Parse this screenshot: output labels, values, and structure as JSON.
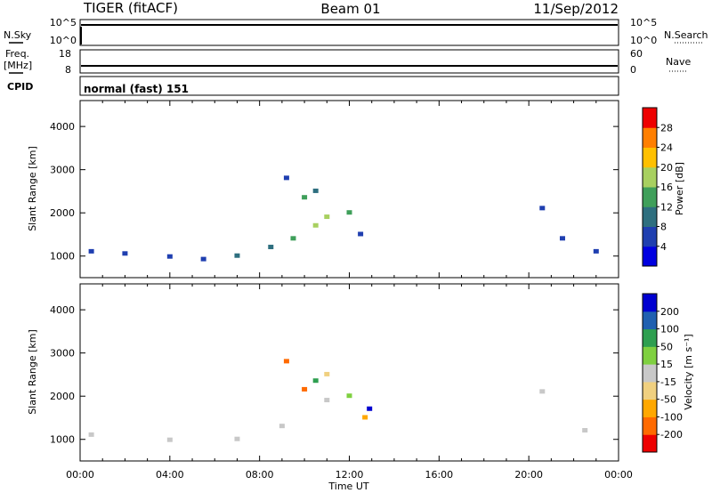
{
  "header": {
    "site": "TIGER (fitACF)",
    "beam": "Beam 01",
    "date": "11/Sep/2012"
  },
  "strips": {
    "nsky": {
      "label": "N.Sky",
      "ticks": [
        "10^5",
        "10^0"
      ]
    },
    "nsearch": {
      "label": "N.Search",
      "ticks": [
        "10^5",
        "10^0"
      ]
    },
    "freq": {
      "label_line1": "Freq.",
      "label_line2": "[MHz]",
      "ticks": [
        "18",
        "8"
      ]
    },
    "nave": {
      "label": "Nave",
      "ticks": [
        "60",
        "0"
      ]
    },
    "cpid": {
      "label": "CPID",
      "value": "normal (fast) 151"
    }
  },
  "colorbars": {
    "power": {
      "label": "Power [dB]",
      "ticks": [
        "28",
        "24",
        "20",
        "16",
        "12",
        "8",
        "4"
      ],
      "colors": [
        "#0000e0",
        "#1f3fb0",
        "#2e6f7f",
        "#3f9f5a",
        "#a8d060",
        "#ffc000",
        "#ff7f00",
        "#ee0000"
      ]
    },
    "velocity": {
      "label": "Velocity [m s⁻¹]",
      "ticks": [
        "200",
        "100",
        "50",
        "15",
        "-15",
        "-50",
        "-100",
        "-200"
      ],
      "colors": [
        "#ee0000",
        "#ff6a00",
        "#ffa800",
        "#f0d080",
        "#c8c8c8",
        "#7fd040",
        "#2e9f50",
        "#2060b0",
        "#0000d0"
      ]
    }
  },
  "chart_data": [
    {
      "type": "scatter",
      "title": "",
      "xlabel": "Time UT",
      "ylabel": "Slant Range [km]",
      "xlim": [
        "00:00",
        "24:00"
      ],
      "ylim": [
        500,
        4600
      ],
      "xticks": [
        "00:00",
        "04:00",
        "08:00",
        "12:00",
        "16:00",
        "20:00",
        "00:00"
      ],
      "yticks": [
        1000,
        2000,
        3000,
        4000
      ],
      "color_quantity": "Power [dB]",
      "series": [
        {
          "values": [
            [
              0.5,
              1100,
              4
            ],
            [
              2.0,
              1050,
              4
            ],
            [
              4.0,
              980,
              5
            ],
            [
              5.5,
              920,
              7
            ],
            [
              7.0,
              1000,
              8
            ],
            [
              8.5,
              1200,
              11
            ],
            [
              9.5,
              1400,
              14
            ],
            [
              10.5,
              1700,
              16
            ],
            [
              11.0,
              1900,
              17
            ],
            [
              12.0,
              2000,
              15
            ],
            [
              12.5,
              1500,
              6
            ],
            [
              10.0,
              2350,
              12
            ],
            [
              10.5,
              2500,
              8
            ],
            [
              9.2,
              2800,
              5
            ],
            [
              20.6,
              2100,
              5
            ],
            [
              21.5,
              1400,
              6
            ],
            [
              23.0,
              1100,
              5
            ]
          ]
        }
      ]
    },
    {
      "type": "scatter",
      "title": "",
      "xlabel": "Time UT",
      "ylabel": "Slant Range [km]",
      "xlim": [
        "00:00",
        "24:00"
      ],
      "ylim": [
        500,
        4600
      ],
      "xticks": [
        "00:00",
        "04:00",
        "08:00",
        "12:00",
        "16:00",
        "20:00",
        "00:00"
      ],
      "yticks": [
        1000,
        2000,
        3000,
        4000
      ],
      "color_quantity": "Velocity [m s⁻¹]",
      "series": [
        {
          "values": [
            [
              0.5,
              1100,
              0
            ],
            [
              4.0,
              980,
              0
            ],
            [
              7.0,
              1000,
              0
            ],
            [
              9.0,
              1300,
              0
            ],
            [
              11.0,
              1900,
              0
            ],
            [
              12.0,
              2000,
              40
            ],
            [
              12.7,
              1500,
              -80
            ],
            [
              10.0,
              2150,
              -200
            ],
            [
              10.5,
              2350,
              60
            ],
            [
              11.0,
              2500,
              -40
            ],
            [
              12.9,
              1700,
              200
            ],
            [
              9.2,
              2800,
              -200
            ],
            [
              20.6,
              2100,
              0
            ],
            [
              22.5,
              1200,
              0
            ]
          ]
        }
      ]
    }
  ]
}
